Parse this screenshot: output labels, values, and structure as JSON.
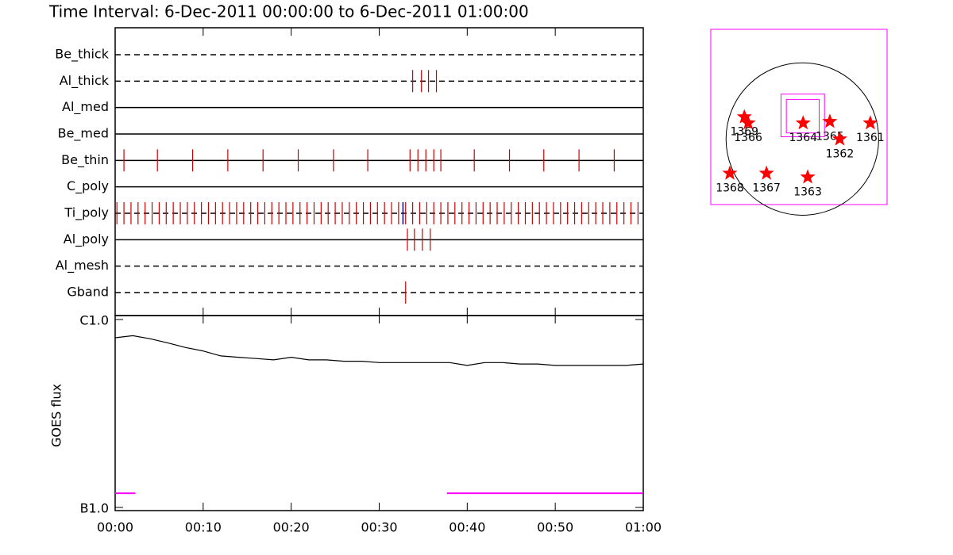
{
  "chart_data": [
    {
      "type": "timeline",
      "title": "Time Interval:  6-Dec-2011 00:00:00 to  6-Dec-2011 01:00:00",
      "categories": [
        "Be_thick",
        "Al_thick",
        "Al_med",
        "Be_med",
        "Be_thin",
        "C_poly",
        "Ti_poly",
        "Al_poly",
        "Al_mesh",
        "Gband"
      ],
      "line_styles": [
        "dashed",
        "dashed",
        "solid",
        "solid",
        "solid",
        "solid",
        "dashed",
        "solid",
        "dashed",
        "dashed"
      ],
      "event_color": "#cc0000",
      "events": [
        [],
        [
          33.8,
          34.8,
          35.6,
          36.5
        ],
        [],
        [],
        [
          1.0,
          4.8,
          8.8,
          12.8,
          16.8,
          20.8,
          24.8,
          28.7,
          33.5,
          34.4,
          35.3,
          36.2,
          37.0,
          40.8,
          44.8,
          48.7,
          52.7,
          56.7
        ],
        [],
        [
          0.2,
          1.0,
          1.8,
          2.6,
          3.4,
          4.2,
          5.0,
          5.8,
          6.6,
          7.4,
          8.2,
          9.0,
          9.8,
          10.6,
          11.4,
          12.2,
          13.0,
          13.8,
          14.6,
          15.4,
          16.2,
          17.0,
          17.8,
          18.6,
          19.4,
          20.2,
          21.0,
          21.8,
          22.6,
          23.4,
          24.2,
          25.0,
          25.8,
          26.6,
          27.4,
          28.2,
          29.0,
          29.8,
          30.6,
          31.4,
          32.2,
          33.0,
          33.8,
          34.6,
          35.4,
          36.2,
          37.0,
          37.8,
          38.6,
          39.4,
          40.2,
          41.0,
          41.8,
          42.6,
          43.4,
          44.2,
          45.0,
          45.8,
          46.6,
          47.4,
          48.2,
          49.0,
          49.8,
          50.6,
          51.4,
          52.2,
          53.0,
          53.8,
          54.6,
          55.4,
          56.2,
          57.0,
          57.8,
          58.6,
          59.4
        ],
        [
          33.2,
          34.0,
          34.9,
          35.8
        ],
        [],
        [
          33.0
        ]
      ],
      "marked_event": {
        "row": "Ti_poly",
        "time": 32.7,
        "color": "#0000cc"
      },
      "xlim": [
        0,
        60
      ]
    },
    {
      "type": "line",
      "y_label": "GOES flux",
      "log_scale": true,
      "xlim": [
        0,
        60
      ],
      "xticks": [
        {
          "value": 0,
          "label": "00:00"
        },
        {
          "value": 10,
          "label": "00:10"
        },
        {
          "value": 20,
          "label": "00:20"
        },
        {
          "value": 30,
          "label": "00:30"
        },
        {
          "value": 40,
          "label": "00:40"
        },
        {
          "value": 50,
          "label": "00:50"
        },
        {
          "value": 60,
          "label": "01:00"
        }
      ],
      "ylim": [
        1e-07,
        1e-06
      ],
      "yticks": [
        {
          "value": 1e-07,
          "label": "B1.0"
        },
        {
          "value": 1e-06,
          "label": "C1.0"
        }
      ],
      "series": [
        {
          "color": "#000000",
          "x": [
            0,
            2,
            4,
            6,
            8,
            10,
            12,
            14,
            16,
            18,
            20,
            22,
            24,
            26,
            28,
            30,
            32,
            34,
            36,
            38,
            40,
            42,
            44,
            46,
            48,
            50,
            52,
            54,
            56,
            58,
            60
          ],
          "values": [
            8e-07,
            8.2e-07,
            7.9e-07,
            7.5e-07,
            7.1e-07,
            6.8e-07,
            6.4e-07,
            6.3e-07,
            6.2e-07,
            6.1e-07,
            6.3e-07,
            6.1e-07,
            6.1e-07,
            6e-07,
            6e-07,
            5.9e-07,
            5.9e-07,
            5.9e-07,
            5.9e-07,
            5.9e-07,
            5.7e-07,
            5.9e-07,
            5.9e-07,
            5.8e-07,
            5.8e-07,
            5.7e-07,
            5.7e-07,
            5.7e-07,
            5.7e-07,
            5.7e-07,
            5.8e-07
          ]
        },
        {
          "color": "#ff00ff",
          "x": [
            0,
            2.3,
            20,
            37.7,
            60
          ],
          "values": [
            1.19e-07,
            1.19e-07,
            null,
            1.19e-07,
            1.19e-07
          ]
        }
      ]
    },
    {
      "type": "scatter",
      "frame_color": "#ff00ff",
      "marker_color": "#ff0000",
      "xlim": [
        -1.2,
        1.11
      ],
      "ylim": [
        -0.86,
        1.44
      ],
      "disk_radius": 1,
      "fov_boxes": [
        [
          -0.28,
          0.03,
          0.29,
          0.59
        ],
        [
          -0.21,
          0.08,
          0.22,
          0.52
        ]
      ],
      "labels": [
        "1369",
        "1366",
        "1364",
        "1365",
        "1362",
        "1361",
        "1368",
        "1367",
        "1363"
      ],
      "x": [
        -0.76,
        -0.71,
        0.01,
        0.36,
        0.49,
        0.89,
        -0.95,
        -0.47,
        0.07
      ],
      "values": [
        0.29,
        0.21,
        0.21,
        0.23,
        0.0,
        0.21,
        -0.45,
        -0.45,
        -0.5
      ]
    }
  ]
}
